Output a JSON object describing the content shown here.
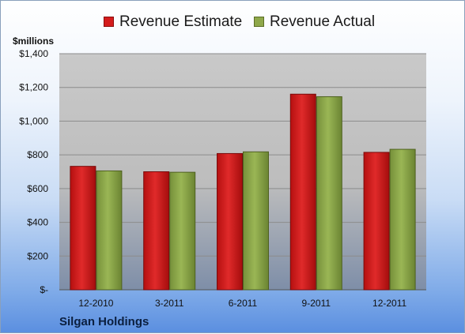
{
  "legend": {
    "estimate_label": "Revenue Estimate",
    "actual_label": "Revenue Actual"
  },
  "unit_label": "$millions",
  "company_name": "Silgan Holdings",
  "colors": {
    "estimate": "#d41c1c",
    "actual": "#8fa84a",
    "plot_bg": "#c8c8c8"
  },
  "chart_data": {
    "type": "bar",
    "categories": [
      "12-2010",
      "3-2011",
      "6-2011",
      "9-2011",
      "12-2011"
    ],
    "series": [
      {
        "name": "Revenue Estimate",
        "values": [
          732,
          700,
          808,
          1160,
          815
        ]
      },
      {
        "name": "Revenue Actual",
        "values": [
          705,
          697,
          818,
          1145,
          833
        ]
      }
    ],
    "ylabel": "$millions",
    "ylim": [
      0,
      1400
    ],
    "yticks": [
      0,
      200,
      400,
      600,
      800,
      1000,
      1200,
      1400
    ],
    "ytick_labels": [
      "$-",
      "$200",
      "$400",
      "$600",
      "$800",
      "$1,000",
      "$1,200",
      "$1,400"
    ],
    "grid": true,
    "legend_position": "top"
  }
}
